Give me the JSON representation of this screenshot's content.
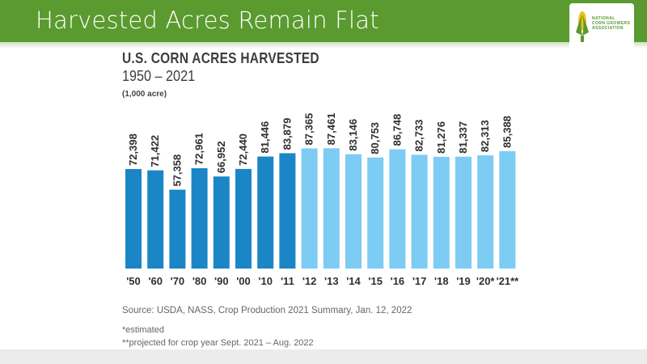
{
  "slide": {
    "title": "Harvested Acres Remain Flat",
    "logo_text": [
      "NATIONAL",
      "CORN GROWERS",
      "ASSOCIATION"
    ],
    "header_color": "#5a9a2f"
  },
  "chart_data": {
    "type": "bar",
    "title": "U.S. CORN ACRES HARVESTED",
    "subtitle": "1950 – 2021",
    "unit": "(1,000 acre)",
    "categories": [
      "'50",
      "'60",
      "'70",
      "'80",
      "'90",
      "'00",
      "'10",
      "'11",
      "'12",
      "'13",
      "'14",
      "'15",
      "'16",
      "'17",
      "'18",
      "'19",
      "'20*",
      "'21**"
    ],
    "values": [
      72398,
      71422,
      57358,
      72961,
      66952,
      72440,
      81446,
      83879,
      87365,
      87461,
      83146,
      80753,
      86748,
      82733,
      81276,
      81337,
      82313,
      85388
    ],
    "value_labels": [
      "72,398",
      "71,422",
      "57,358",
      "72,961",
      "66,952",
      "72,440",
      "81,446",
      "83,879",
      "87,365",
      "87,461",
      "83,146",
      "80,753",
      "86,748",
      "82,733",
      "81,276",
      "81,337",
      "82,313",
      "85,388"
    ],
    "colors": {
      "dark": "#1b86c6",
      "light": "#7cccf3"
    },
    "dark_bar_count": 8,
    "grid": false,
    "legend": "none"
  },
  "footer": {
    "source": "Source: USDA, NASS, Crop Production 2021 Summary, Jan. 12, 2022",
    "note_estimated": "*estimated",
    "note_projected": "**projected for crop year Sept. 2021 – Aug. 2022"
  }
}
